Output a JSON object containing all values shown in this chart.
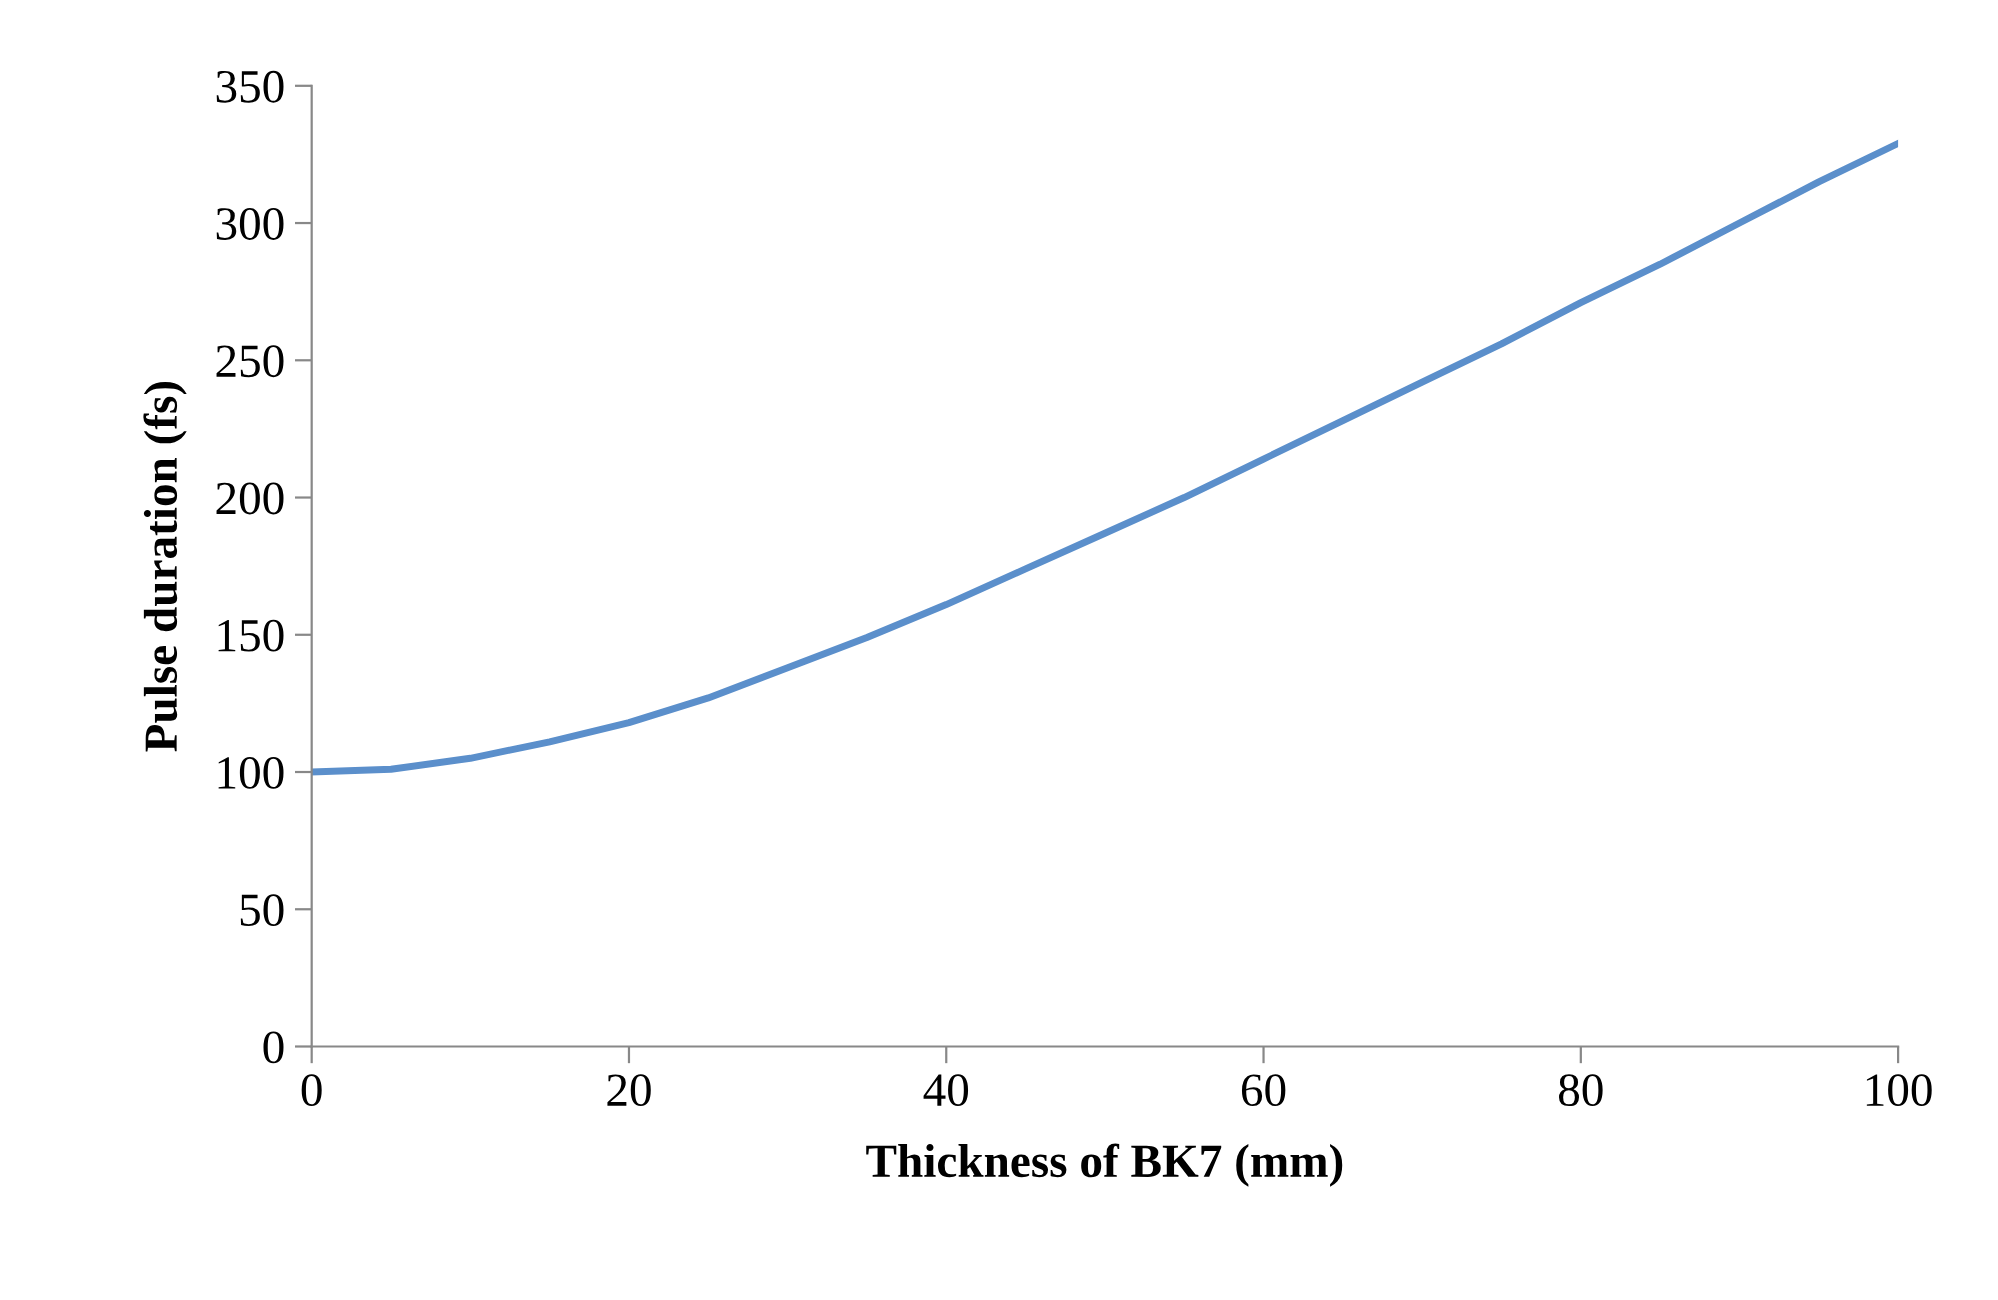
{
  "chart_data": {
    "type": "line",
    "xlabel": "Thickness of BK7 (mm)",
    "ylabel": "Pulse duration (fs)",
    "x": [
      0,
      5,
      10,
      15,
      20,
      25,
      30,
      35,
      40,
      45,
      50,
      55,
      60,
      65,
      70,
      75,
      80,
      85,
      90,
      95,
      100
    ],
    "series": [
      {
        "color": "#5b8fcb",
        "values": [
          100,
          101,
          105,
          111,
          118,
          127,
          138,
          149,
          161,
          174,
          187,
          200,
          214,
          228,
          242,
          256,
          271,
          285,
          300,
          315,
          329
        ]
      }
    ],
    "xlim": [
      0,
      100
    ],
    "xticks": [
      0,
      20,
      40,
      60,
      80,
      100
    ],
    "ylim": [
      0,
      350
    ],
    "yticks": [
      0,
      50,
      100,
      150,
      200,
      250,
      300,
      350
    ],
    "grid": false,
    "legend": false,
    "marker": "none",
    "line_style": "solid"
  }
}
